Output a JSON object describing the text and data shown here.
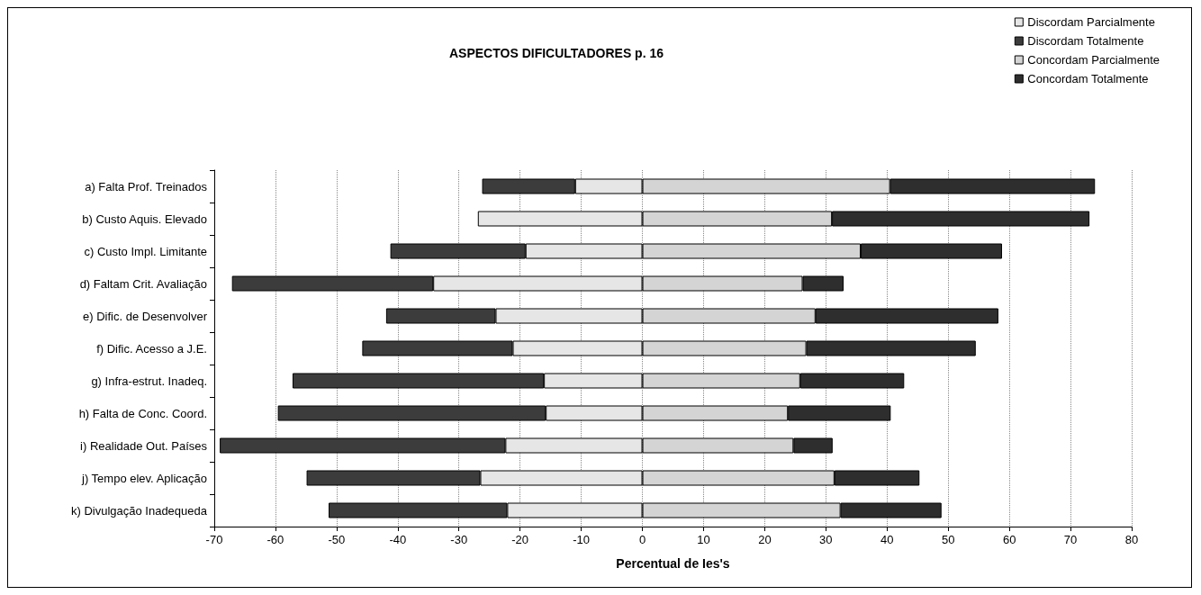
{
  "chart_data": {
    "type": "bar",
    "orientation": "horizontal",
    "stacked": true,
    "title": "ASPECTOS DIFICULTADORES p. 16",
    "xlabel": "Percentual de Ies's",
    "categories": [
      "a) Falta Prof. Treinados",
      "b) Custo Aquis. Elevado",
      "c) Custo Impl. Limitante",
      "d) Faltam Crit. Avaliação",
      "e) Dific. de Desenvolver",
      "f) Dific. Acesso a J.E.",
      "g) Infra-estrut. Inadeq.",
      "h) Falta de Conc. Coord.",
      "i) Realidade Out. Países",
      "j) Tempo elev. Aplicação",
      "k) Divulgação Inadequeda"
    ],
    "series": [
      {
        "name": "Discordam Parcialmente",
        "color": "#e6e6e6",
        "values": [
          -11.0,
          -26.9,
          -19.1,
          -34.2,
          -24.0,
          -21.2,
          -16.1,
          -15.8,
          -22.4,
          -26.5,
          -22.1
        ]
      },
      {
        "name": "Discordam Totalmente",
        "color": "#3c3c3c",
        "values": [
          -15.2,
          null,
          -22.1,
          -32.9,
          -17.9,
          -24.6,
          -41.1,
          -43.8,
          -46.7,
          -28.4,
          -29.2
        ]
      },
      {
        "name": "Concordam Parcialmente",
        "color": "#d4d4d4",
        "values": [
          40.5,
          31.0,
          35.7,
          26.2,
          28.3,
          26.8,
          25.8,
          23.8,
          24.7,
          31.4,
          32.4
        ]
      },
      {
        "name": "Concordam Totalmente",
        "color": "#2e2e2e",
        "values": [
          33.5,
          42.1,
          23.1,
          6.7,
          29.9,
          27.7,
          17.0,
          16.8,
          6.4,
          13.9,
          16.5
        ]
      }
    ],
    "xlim": [
      -70,
      80
    ],
    "xticks": [
      -70,
      -60,
      -50,
      -40,
      -30,
      -20,
      -10,
      0,
      10,
      20,
      30,
      40,
      50,
      60,
      70,
      80
    ],
    "grid": "x",
    "legend": "top right"
  }
}
